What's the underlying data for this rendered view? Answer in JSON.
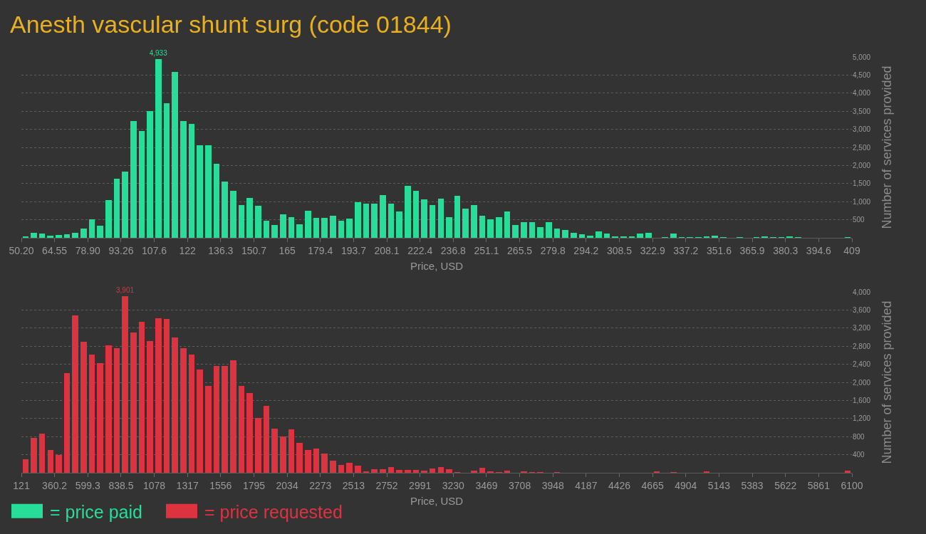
{
  "chart_data": [
    {
      "type": "histogram",
      "title": "Anesth vascular shunt surg (code 01844)",
      "xlabel": "Price, USD",
      "ylabel": "Number of services provided",
      "bins": [
        50.2,
        53.79,
        57.38,
        60.96,
        64.55,
        68.14,
        71.73,
        75.32,
        78.9,
        82.49,
        86.08,
        89.67,
        93.26,
        96.84,
        100.43,
        104.02,
        107.61,
        111.2,
        114.78,
        118.37,
        121.96,
        125.55,
        129.14,
        132.72,
        136.31,
        139.9,
        143.49,
        147.08,
        150.66,
        154.25,
        157.84,
        161.43,
        165.02,
        168.6,
        172.19,
        175.78,
        179.37,
        182.96,
        186.54,
        190.13,
        193.72,
        197.31,
        200.9,
        204.48,
        208.07,
        211.66,
        215.25,
        218.84,
        222.42,
        226.01,
        229.6,
        233.19,
        236.78,
        240.36,
        243.95,
        247.54,
        251.13,
        254.72,
        258.3,
        261.89,
        265.48,
        269.07,
        272.66,
        276.24,
        279.83,
        283.42,
        287.01,
        290.6,
        294.18,
        297.77,
        301.36,
        304.95,
        308.54,
        312.12,
        315.71,
        319.3,
        322.89,
        326.48,
        330.06,
        333.65,
        337.24,
        340.83,
        344.42,
        348,
        351.59,
        355.18,
        358.77,
        362.36,
        365.94,
        369.53,
        373.12,
        376.71,
        380.3,
        383.88,
        387.47,
        391.06,
        394.65,
        398.24,
        401.82,
        405.41,
        409
      ],
      "series": [
        {
          "name": "= price paid",
          "color": "#26dd9a",
          "values": [
            40,
            140,
            120,
            60,
            80,
            100,
            140,
            260,
            510,
            340,
            1040,
            1630,
            1830,
            3230,
            2950,
            3510,
            4933,
            3730,
            4590,
            3230,
            3150,
            2560,
            2560,
            2050,
            1550,
            1290,
            900,
            1100,
            880,
            480,
            360,
            640,
            580,
            380,
            740,
            560,
            560,
            620,
            480,
            540,
            980,
            950,
            940,
            1180,
            940,
            720,
            1440,
            1290,
            1060,
            900,
            1080,
            580,
            1160,
            800,
            900,
            620,
            520,
            580,
            720,
            350,
            430,
            440,
            300,
            440,
            260,
            220,
            130,
            100,
            60,
            180,
            120,
            40,
            40,
            40,
            120,
            140,
            0,
            20,
            120,
            20,
            20,
            20,
            40,
            60,
            20,
            0,
            20,
            0,
            20,
            40,
            20,
            20,
            40,
            20,
            0,
            0,
            0,
            0,
            0,
            20
          ],
          "value_labels": [
            null,
            null,
            null,
            null,
            null,
            null,
            null,
            null,
            null,
            null,
            null,
            null,
            null,
            null,
            null,
            null,
            "4,933",
            null,
            null,
            null,
            null,
            null,
            null,
            null,
            null,
            null,
            null,
            null,
            null,
            null,
            null,
            null,
            null,
            null,
            null,
            null,
            null,
            null,
            null,
            null,
            null,
            null,
            null,
            null,
            null,
            null,
            null,
            null,
            null,
            null,
            null,
            null,
            null,
            null,
            null,
            null,
            null,
            null,
            null,
            null,
            null,
            null,
            null,
            null,
            null,
            null,
            null,
            null,
            null,
            null,
            null,
            null,
            null,
            null,
            null,
            null,
            null,
            null,
            null,
            null,
            null,
            null,
            null,
            null,
            null,
            null,
            null,
            null,
            null,
            null,
            null,
            null,
            null,
            null,
            null,
            null,
            null,
            null,
            null,
            null
          ]
        }
      ],
      "xlim": [
        50.2,
        409
      ],
      "xticks": [
        {
          "value": 50.2,
          "label": "50.20"
        },
        64.55,
        {
          "value": 78.9,
          "label": "78.90"
        },
        93.26,
        {
          "value": 107.61,
          "label": "107.6"
        },
        {
          "value": 121.96,
          "label": "122"
        },
        {
          "value": 136.31,
          "label": "136.3"
        },
        {
          "value": 150.66,
          "label": "150.7"
        },
        {
          "value": 165.02,
          "label": "165"
        },
        {
          "value": 179.37,
          "label": "179.4"
        },
        {
          "value": 193.72,
          "label": "193.7"
        },
        {
          "value": 208.07,
          "label": "208.1"
        },
        {
          "value": 222.42,
          "label": "222.4"
        },
        {
          "value": 236.78,
          "label": "236.8"
        },
        {
          "value": 251.13,
          "label": "251.1"
        },
        {
          "value": 265.48,
          "label": "265.5"
        },
        {
          "value": 279.83,
          "label": "279.8"
        },
        {
          "value": 294.18,
          "label": "294.2"
        },
        {
          "value": 308.54,
          "label": "308.5"
        },
        {
          "value": 322.89,
          "label": "322.9"
        },
        {
          "value": 337.24,
          "label": "337.2"
        },
        {
          "value": 351.59,
          "label": "351.6"
        },
        {
          "value": 365.94,
          "label": "365.9"
        },
        380.3,
        {
          "value": 394.65,
          "label": "394.6"
        },
        409
      ],
      "ylim": [
        0,
        5000
      ],
      "yticks": [
        500,
        {
          "value": 1000,
          "label": "1,000"
        },
        {
          "value": 1500,
          "label": "1,500"
        },
        {
          "value": 2000,
          "label": "2,000"
        },
        {
          "value": 2500,
          "label": "2,500"
        },
        {
          "value": 3000,
          "label": "3,000"
        },
        {
          "value": 3500,
          "label": "3,500"
        },
        {
          "value": 4000,
          "label": "4,000"
        },
        {
          "value": 4500,
          "label": "4,500"
        },
        {
          "value": 5000,
          "label": "5,000"
        }
      ],
      "grid": "y",
      "legend": "bottom left"
    },
    {
      "type": "histogram",
      "xlabel": "Price, USD",
      "ylabel": "Number of services provided",
      "bins": [
        121,
        180.79,
        240.58,
        300.37,
        360.16,
        419.95,
        479.74,
        539.53,
        599.32,
        659.11,
        718.9,
        778.69,
        838.48,
        898.27,
        958.06,
        1017.85,
        1077.64,
        1137.43,
        1197.22,
        1257.01,
        1316.8,
        1376.59,
        1436.38,
        1496.17,
        1555.96,
        1615.75,
        1675.54,
        1735.33,
        1795.12,
        1854.91,
        1914.7,
        1974.49,
        2034.28,
        2094.07,
        2153.86,
        2213.65,
        2273.44,
        2333.23,
        2393.02,
        2452.81,
        2512.6,
        2572.39,
        2632.18,
        2691.97,
        2751.76,
        2811.55,
        2871.34,
        2931.13,
        2990.92,
        3050.71,
        3110.5,
        3170.29,
        3230.08,
        3289.87,
        3349.66,
        3409.45,
        3469.24,
        3529.03,
        3588.82,
        3648.61,
        3708.4,
        3768.19,
        3827.98,
        3887.77,
        3947.56,
        4007.35,
        4067.14,
        4126.93,
        4186.72,
        4246.51,
        4306.3,
        4366.09,
        4425.88,
        4485.67,
        4545.46,
        4605.25,
        4665.04,
        4724.83,
        4784.62,
        4844.41,
        4904.2,
        4963.99,
        5023.78,
        5083.57,
        5143.36,
        5203.15,
        5262.94,
        5322.73,
        5382.52,
        5442.31,
        5502.1,
        5561.89,
        5621.68,
        5681.47,
        5741.26,
        5801.05,
        5860.84,
        5920.63,
        5980.42,
        6040.21,
        6100
      ],
      "series": [
        {
          "name": "= price requested",
          "color": "#dd3340",
          "values": [
            300,
            770,
            860,
            500,
            400,
            2200,
            3480,
            2900,
            2620,
            2420,
            2820,
            2760,
            3901,
            3110,
            3340,
            2920,
            3410,
            3400,
            3000,
            2760,
            2620,
            2280,
            1920,
            2360,
            2360,
            2490,
            1920,
            1770,
            1210,
            1480,
            980,
            810,
            960,
            660,
            500,
            540,
            430,
            260,
            180,
            220,
            160,
            30,
            80,
            80,
            130,
            60,
            60,
            60,
            40,
            100,
            130,
            80,
            20,
            0,
            40,
            110,
            30,
            20,
            40,
            0,
            30,
            20,
            20,
            0,
            20,
            0,
            0,
            0,
            0,
            0,
            0,
            0,
            0,
            0,
            0,
            0,
            30,
            0,
            20,
            0,
            0,
            0,
            30,
            0,
            0,
            0,
            0,
            0,
            0,
            0,
            0,
            0,
            0,
            0,
            0,
            0,
            0,
            0,
            0,
            50
          ],
          "value_labels": [
            null,
            null,
            null,
            null,
            null,
            null,
            null,
            null,
            null,
            null,
            null,
            null,
            "3,901",
            null,
            null,
            null,
            null,
            null,
            null,
            null,
            null,
            null,
            null,
            null,
            null,
            null,
            null,
            null,
            null,
            null,
            null,
            null,
            null,
            null,
            null,
            null,
            null,
            null,
            null,
            null,
            null,
            null,
            null,
            null,
            null,
            null,
            null,
            null,
            null,
            null,
            null,
            null,
            null,
            null,
            null,
            null,
            null,
            null,
            null,
            null,
            null,
            null,
            null,
            null,
            null,
            null,
            null,
            null,
            null,
            null,
            null,
            null,
            null,
            null,
            null,
            null,
            null,
            null,
            null,
            null,
            null,
            null,
            null,
            null,
            null,
            null,
            null,
            null,
            null,
            null,
            null,
            null,
            null,
            null,
            null,
            null,
            null,
            null,
            null,
            null
          ]
        }
      ],
      "xlim": [
        121,
        6100
      ],
      "xticks": [
        121,
        {
          "value": 360.16,
          "label": "360.2"
        },
        {
          "value": 599.32,
          "label": "599.3"
        },
        {
          "value": 838.48,
          "label": "838.5"
        },
        {
          "value": 1077.64,
          "label": "1078"
        },
        {
          "value": 1316.8,
          "label": "1317"
        },
        {
          "value": 1555.96,
          "label": "1556"
        },
        {
          "value": 1795.12,
          "label": "1795"
        },
        {
          "value": 2034.28,
          "label": "2034"
        },
        {
          "value": 2273.44,
          "label": "2273"
        },
        {
          "value": 2512.6,
          "label": "2513"
        },
        {
          "value": 2751.76,
          "label": "2752"
        },
        {
          "value": 2990.92,
          "label": "2991"
        },
        {
          "value": 3230.08,
          "label": "3230"
        },
        {
          "value": 3469.24,
          "label": "3469"
        },
        {
          "value": 3708.4,
          "label": "3708"
        },
        {
          "value": 3947.56,
          "label": "3948"
        },
        {
          "value": 4186.72,
          "label": "4187"
        },
        {
          "value": 4425.88,
          "label": "4426"
        },
        {
          "value": 4665.04,
          "label": "4665"
        },
        {
          "value": 4904.2,
          "label": "4904"
        },
        {
          "value": 5143.36,
          "label": "5143"
        },
        {
          "value": 5382.52,
          "label": "5383"
        },
        {
          "value": 5621.68,
          "label": "5622"
        },
        {
          "value": 5860.84,
          "label": "5861"
        },
        6100
      ],
      "ylim": [
        0,
        4000
      ],
      "yticks": [
        400,
        800,
        {
          "value": 1200,
          "label": "1,200"
        },
        {
          "value": 1600,
          "label": "1,600"
        },
        {
          "value": 2000,
          "label": "2,000"
        },
        {
          "value": 2400,
          "label": "2,400"
        },
        {
          "value": 2800,
          "label": "2,800"
        },
        {
          "value": 3200,
          "label": "3,200"
        },
        {
          "value": 3600,
          "label": "3,600"
        },
        {
          "value": 4000,
          "label": "4,000"
        }
      ],
      "grid": "y",
      "legend": "bottom left"
    }
  ]
}
